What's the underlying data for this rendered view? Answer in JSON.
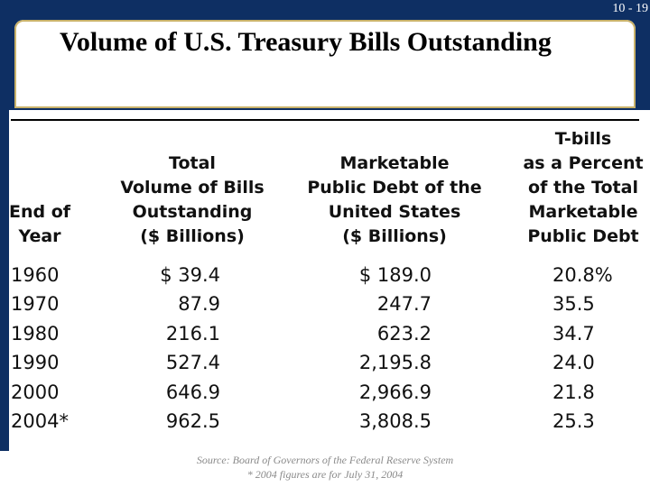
{
  "page_number": "10 - 19",
  "title": "Volume of U.S. Treasury Bills Outstanding",
  "table": {
    "headers": {
      "year": "End of\nYear",
      "bills": "Total\nVolume of Bills\nOutstanding\n($ Billions)",
      "debt": "Marketable\nPublic Debt of the\nUnited States\n($ Billions)",
      "percent": "T-bills\nas a Percent\nof the Total\nMarketable\nPublic Debt"
    },
    "rows": [
      {
        "year": "1960",
        "bills": "$ 39.4",
        "debt": "$ 189.0",
        "percent": "20.8%"
      },
      {
        "year": "1970",
        "bills": "87.9",
        "debt": "247.7",
        "percent": "35.5"
      },
      {
        "year": "1980",
        "bills": "216.1",
        "debt": "623.2",
        "percent": "34.7"
      },
      {
        "year": "1990",
        "bills": "527.4",
        "debt": "2,195.8",
        "percent": "24.0"
      },
      {
        "year": "2000",
        "bills": "646.9",
        "debt": "2,966.9",
        "percent": "21.8"
      },
      {
        "year": "2004*",
        "bills": "962.5",
        "debt": "3,808.5",
        "percent": "25.3"
      }
    ]
  },
  "source": "Source: Board of Governors of the Federal Reserve System",
  "footnote": "* 2004 figures are for July 31, 2004",
  "colors": {
    "band": "#0e2f63",
    "title_border": "#c9b26a",
    "source_text": "#8a8a8a"
  }
}
